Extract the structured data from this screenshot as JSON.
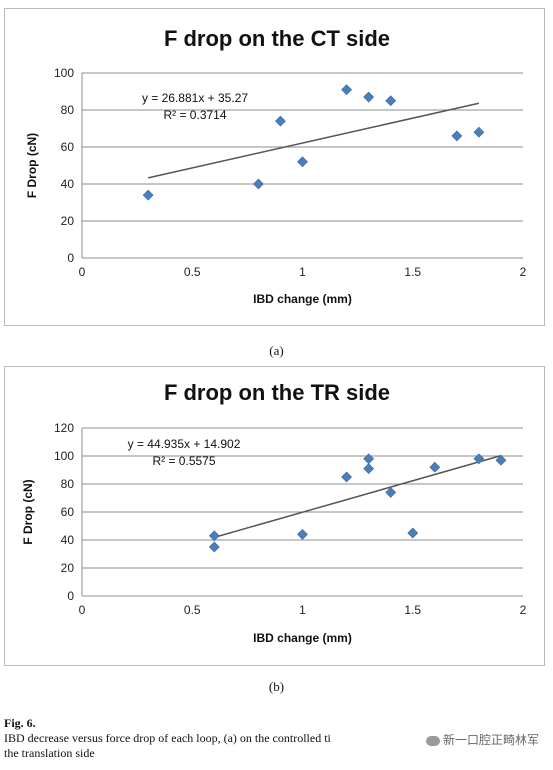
{
  "chart_data": [
    {
      "type": "scatter",
      "title": "F drop on the CT side",
      "xlabel": "IBD change (mm)",
      "ylabel": "F Drop (cN)",
      "xlim": [
        0,
        2
      ],
      "ylim": [
        0,
        100
      ],
      "xticks": [
        "0",
        "0.5",
        "1",
        "1.5",
        "2"
      ],
      "yticks": [
        "0",
        "20",
        "40",
        "60",
        "80",
        "100"
      ],
      "x": [
        0.3,
        0.8,
        0.9,
        1.0,
        1.2,
        1.3,
        1.4,
        1.7,
        1.8
      ],
      "y": [
        34,
        40,
        74,
        52,
        91,
        87,
        85,
        66,
        68
      ],
      "trendline": {
        "slope": 26.881,
        "intercept": 35.27,
        "x_range": [
          0.3,
          1.8
        ]
      },
      "equation": "y = 26.881x + 35.27",
      "r2": "R² = 0.3714",
      "grid": "horizontal",
      "marker_color": "#4a7ebb",
      "trend_color": "#555555"
    },
    {
      "type": "scatter",
      "title": "F drop on the TR side",
      "xlabel": "IBD change (mm)",
      "ylabel": "F Drop (cN)",
      "xlim": [
        0,
        2
      ],
      "ylim": [
        0,
        120
      ],
      "xticks": [
        "0",
        "0.5",
        "1",
        "1.5",
        "2"
      ],
      "yticks": [
        "0",
        "20",
        "40",
        "60",
        "80",
        "100",
        "120"
      ],
      "x": [
        0.6,
        0.6,
        1.0,
        1.2,
        1.3,
        1.3,
        1.4,
        1.5,
        1.6,
        1.8,
        1.9
      ],
      "y": [
        43,
        35,
        44,
        85,
        91,
        98,
        74,
        45,
        92,
        98,
        97
      ],
      "trendline": {
        "slope": 44.935,
        "intercept": 14.902,
        "x_range": [
          0.6,
          1.9
        ]
      },
      "equation": "y = 44.935x + 14.902",
      "r2": "R² = 0.5575",
      "grid": "horizontal",
      "marker_color": "#4a7ebb",
      "trend_color": "#555555"
    }
  ],
  "labels": {
    "a": "(a)",
    "b": "(b)"
  },
  "caption": {
    "title": "Fig. 6.",
    "text": "IBD decrease versus force drop of each loop, (a) on the controlled ti",
    "text2": "the translation side"
  },
  "watermark": "新一口腔正畸林军"
}
